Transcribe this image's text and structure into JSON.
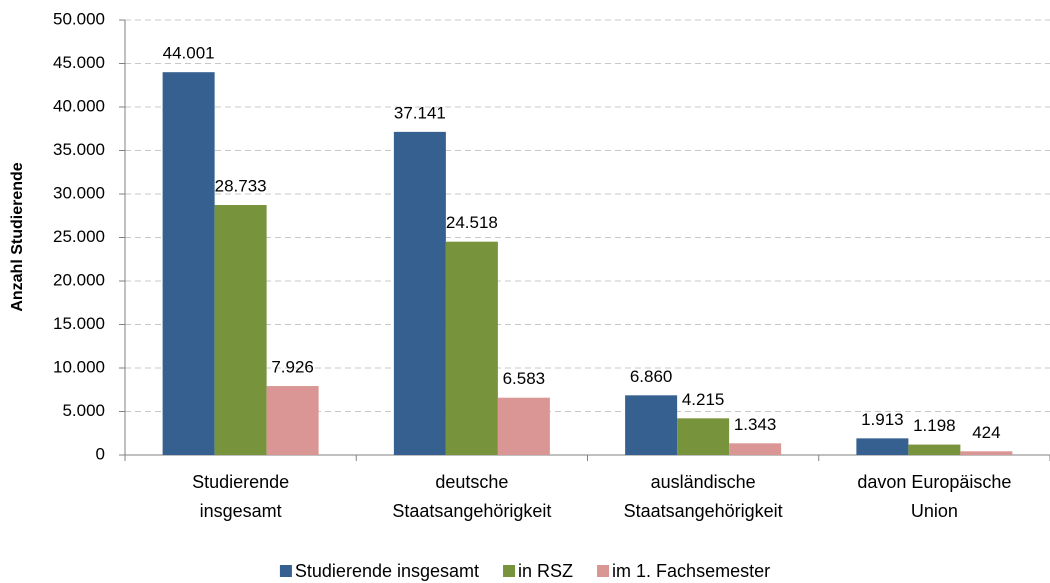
{
  "chart_data": {
    "type": "bar",
    "y_label": "Anzahl Studierende",
    "categories": [
      [
        "Studierende",
        "insgesamt"
      ],
      [
        "deutsche",
        "Staatsangehörigkeit"
      ],
      [
        "ausländische",
        "Staatsangehörigkeit"
      ],
      [
        "davon Europäische",
        "Union"
      ]
    ],
    "series": [
      {
        "name": "Studierende insgesamt",
        "color": "#35608f",
        "values": [
          44001,
          37141,
          6860,
          1913
        ],
        "value_labels": [
          "44.001",
          "37.141",
          "6.860",
          "1.913"
        ]
      },
      {
        "name": "in RSZ",
        "color": "#77933c",
        "values": [
          28733,
          24518,
          4215,
          1198
        ],
        "value_labels": [
          "28.733",
          "24.518",
          "4.215",
          "1.198"
        ]
      },
      {
        "name": "im 1. Fachsemester",
        "color": "#d99694",
        "values": [
          7926,
          6583,
          1343,
          424
        ],
        "value_labels": [
          "7.926",
          "6.583",
          "1.343",
          "424"
        ]
      }
    ],
    "ylim": [
      0,
      50000
    ],
    "yticks": [
      0,
      {
        "value": 5000,
        "label": "5.000"
      },
      {
        "value": 10000,
        "label": "10.000"
      },
      {
        "value": 15000,
        "label": "15.000"
      },
      {
        "value": 20000,
        "label": "20.000"
      },
      {
        "value": 25000,
        "label": "25.000"
      },
      {
        "value": 30000,
        "label": "30.000"
      },
      {
        "value": 35000,
        "label": "35.000"
      },
      {
        "value": 40000,
        "label": "40.000"
      },
      {
        "value": 45000,
        "label": "45.000"
      },
      {
        "value": 50000,
        "label": "50.000"
      }
    ],
    "grid": true,
    "legend": "bottom"
  }
}
